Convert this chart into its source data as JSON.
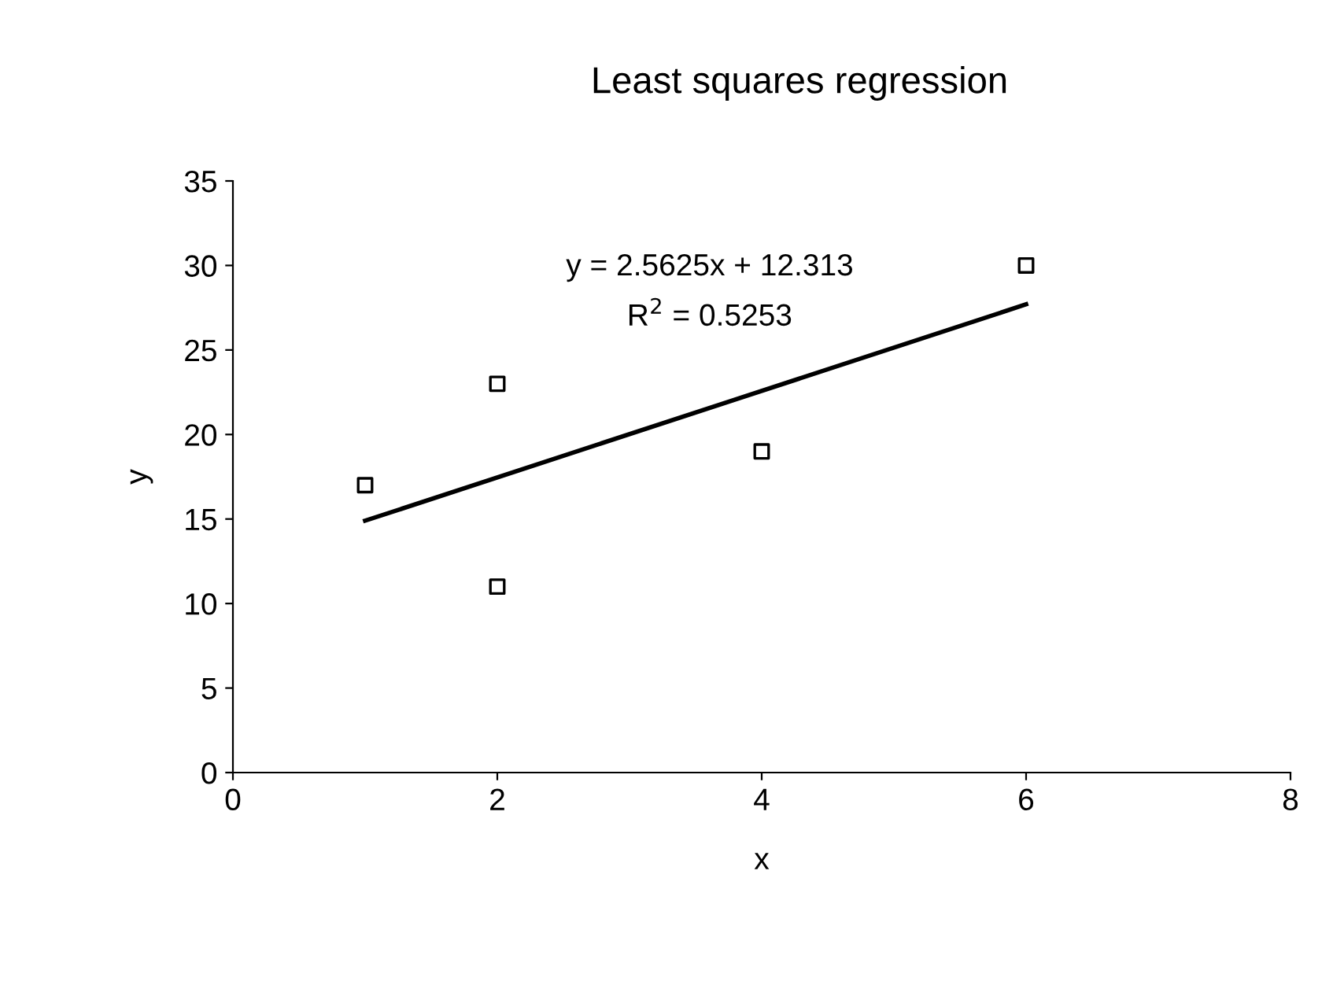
{
  "chart_data": {
    "type": "scatter",
    "title": "Least squares regression",
    "xlabel": "x",
    "ylabel": "y",
    "series": [
      {
        "color": "#000000",
        "marker": "square",
        "x": [
          1,
          2,
          2,
          4,
          6
        ],
        "values": [
          17,
          23,
          11,
          19,
          30
        ]
      },
      {
        "type": "line",
        "color": "#000000",
        "marker": "none",
        "line_style": "solid",
        "x": [
          1,
          6
        ],
        "values": [
          14.9,
          27.7
        ]
      }
    ],
    "annotations": [
      "y = 2.5625x + 12.313",
      "R$^{2}$ = 0.5253"
    ],
    "xlim": [
      0,
      8
    ],
    "xticks": [
      0,
      2,
      4,
      6,
      8
    ],
    "ylim": [
      0,
      35
    ],
    "yticks": [
      0,
      5,
      10,
      15,
      20,
      25,
      30,
      35
    ],
    "grid": false,
    "legend": false
  }
}
